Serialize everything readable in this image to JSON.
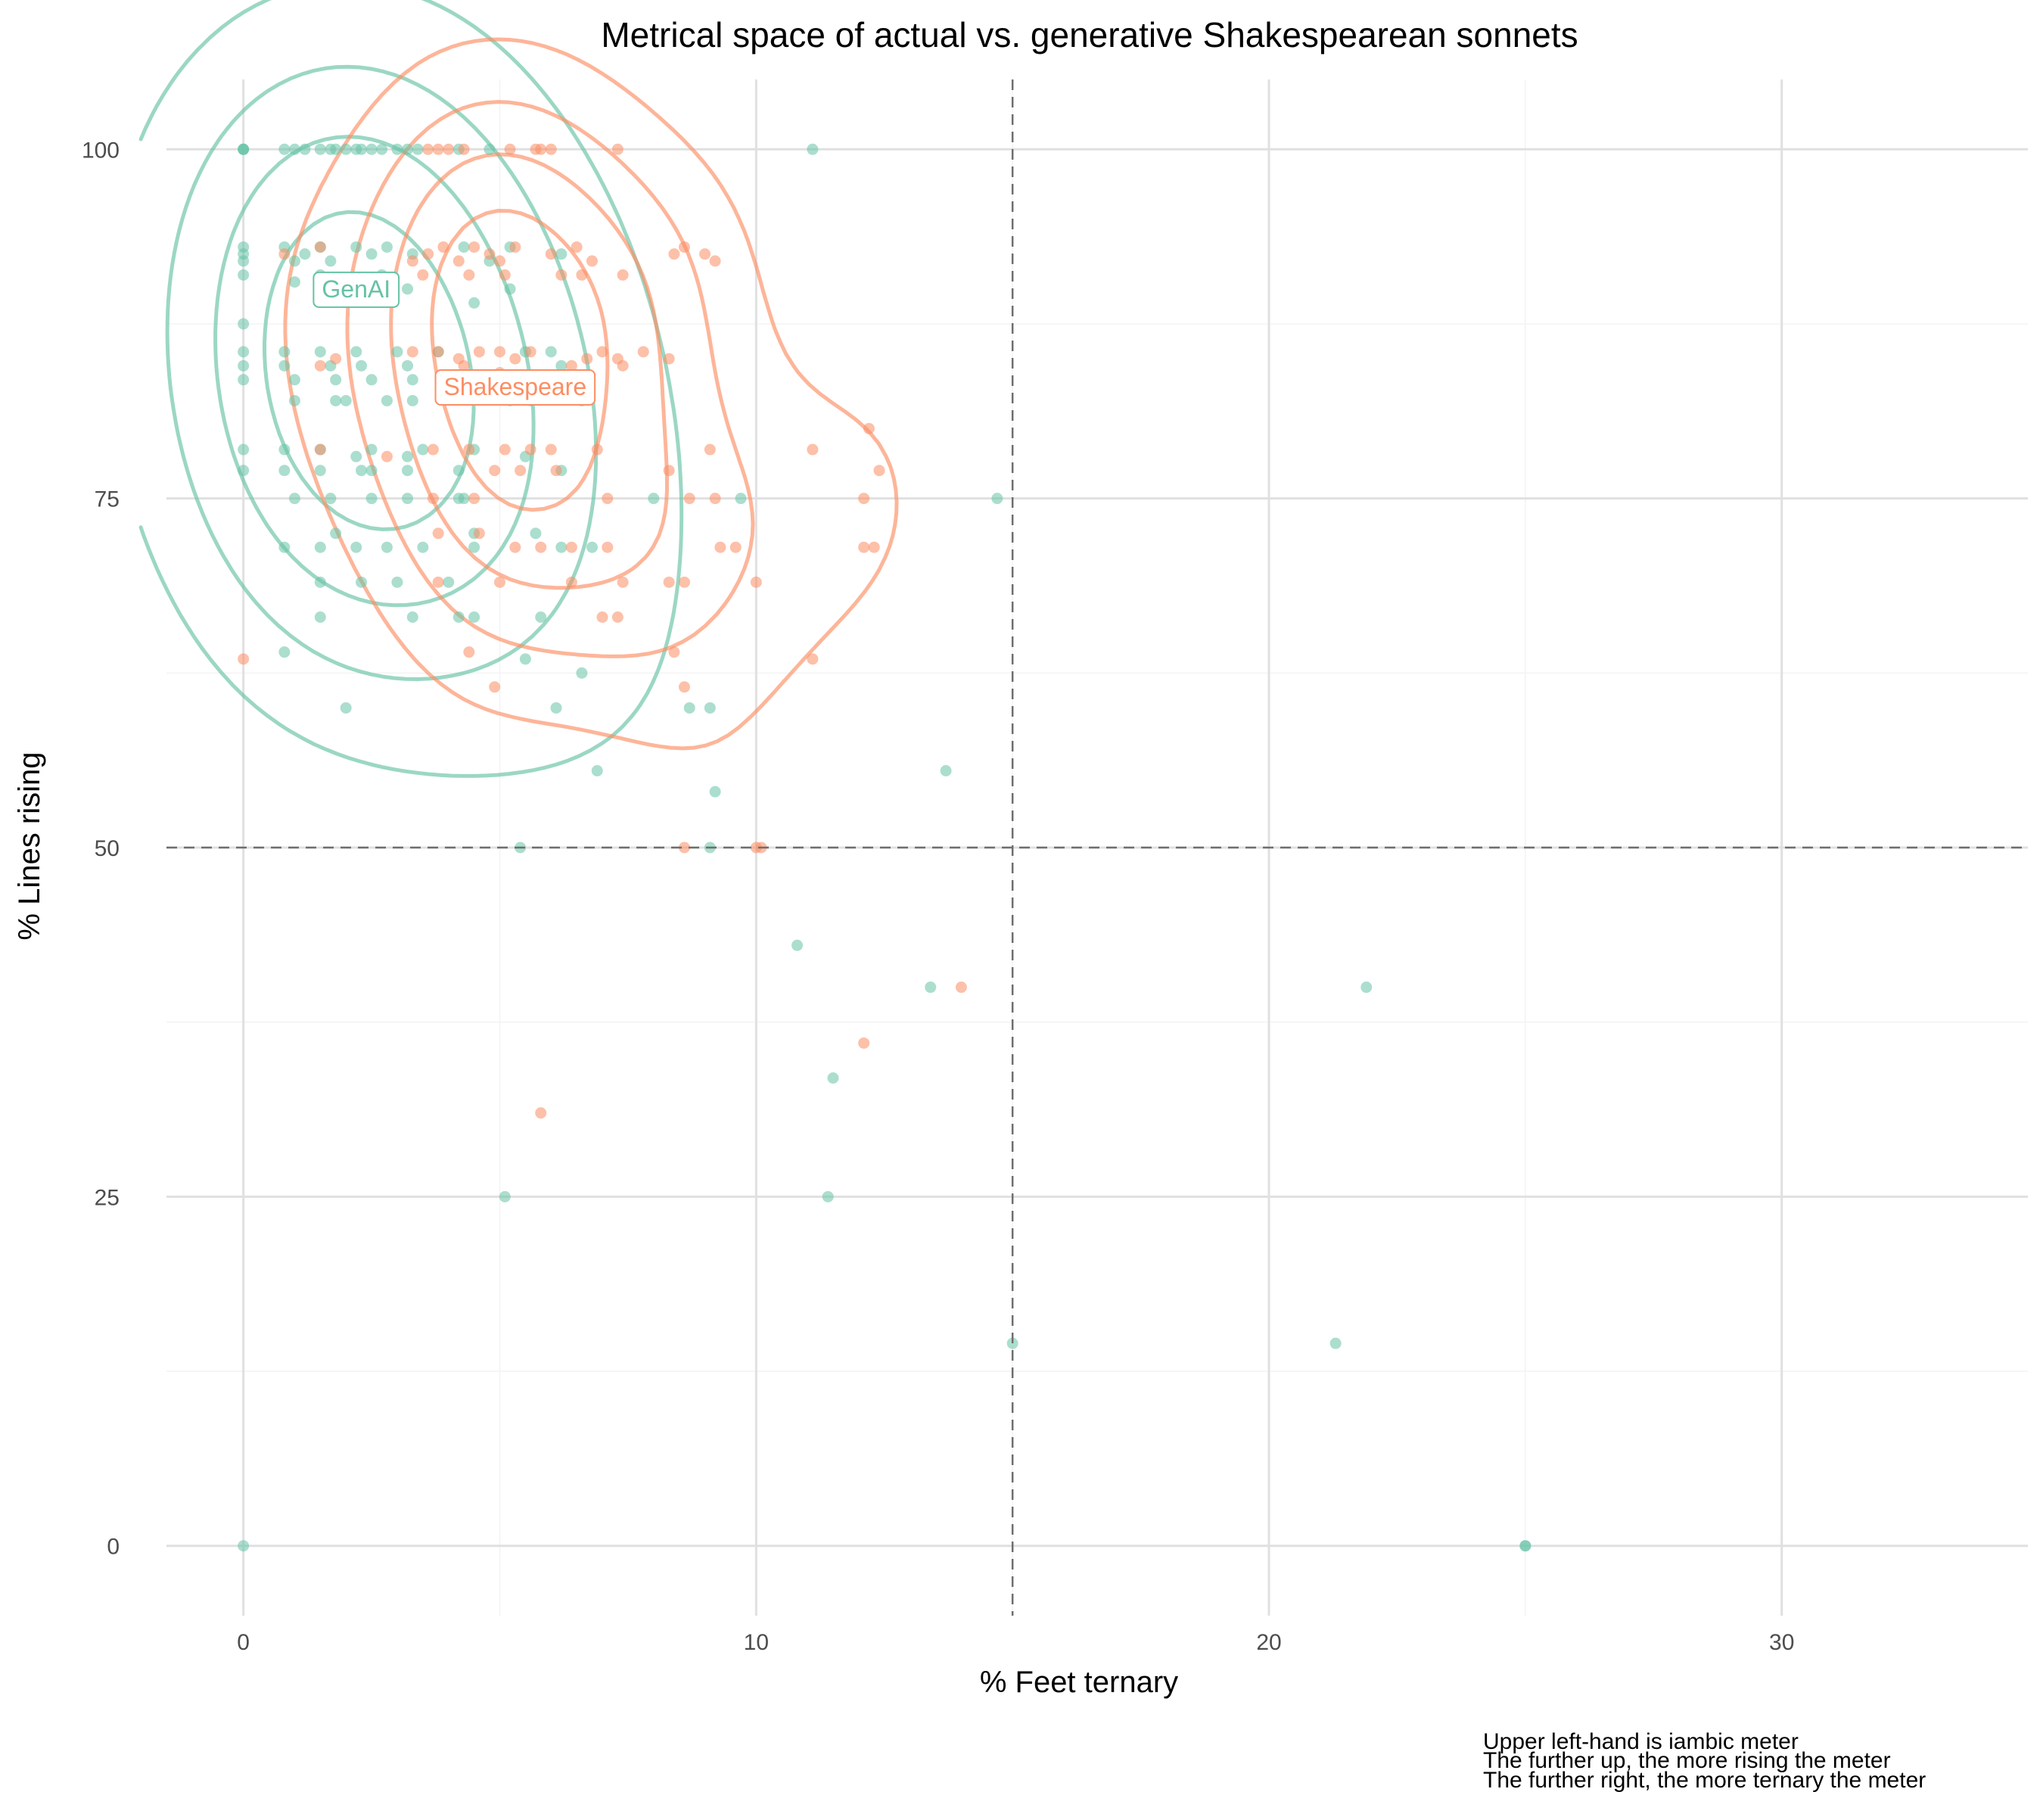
{
  "chart_data": {
    "type": "scatter",
    "title": "Metrical space of actual vs. generative Shakespearean sonnets",
    "xlabel": "% Feet ternary",
    "ylabel": "% Lines rising",
    "xlim": [
      -1.5,
      34.8
    ],
    "ylim": [
      -5,
      105
    ],
    "x_ticks": [
      0,
      10,
      20,
      30
    ],
    "y_ticks": [
      0,
      25,
      50,
      75,
      100
    ],
    "grid": true,
    "legend": "none",
    "reference_lines": {
      "x": 15,
      "y": 50
    },
    "caption": [
      "Upper left-hand is iambic meter",
      "The further up, the more rising the meter",
      "The further right, the more ternary the meter"
    ],
    "series": [
      {
        "name": "GenAI",
        "color": "#66c2a5",
        "label_position": [
          2.2,
          90
        ],
        "points": [
          [
            0,
            100
          ],
          [
            0,
            100
          ],
          [
            0,
            100
          ],
          [
            0.8,
            100
          ],
          [
            1,
            100
          ],
          [
            1.2,
            100
          ],
          [
            1.5,
            100
          ],
          [
            1.7,
            100
          ],
          [
            1.8,
            100
          ],
          [
            2,
            100
          ],
          [
            2.2,
            100
          ],
          [
            2.3,
            100
          ],
          [
            2.5,
            100
          ],
          [
            2.7,
            100
          ],
          [
            3,
            100
          ],
          [
            3.2,
            100
          ],
          [
            3.4,
            100
          ],
          [
            4.2,
            100
          ],
          [
            4.8,
            100
          ],
          [
            11.1,
            100
          ],
          [
            0,
            93
          ],
          [
            0,
            92.5
          ],
          [
            0,
            92
          ],
          [
            0,
            91
          ],
          [
            0.8,
            93
          ],
          [
            1,
            92
          ],
          [
            1.2,
            92.5
          ],
          [
            1.5,
            93
          ],
          [
            1.7,
            92
          ],
          [
            2.2,
            93
          ],
          [
            2.5,
            92.5
          ],
          [
            2.8,
            93
          ],
          [
            3.3,
            92.5
          ],
          [
            4.3,
            93
          ],
          [
            4.8,
            92
          ],
          [
            5.2,
            93
          ],
          [
            6.2,
            92.5
          ],
          [
            1,
            90.5
          ],
          [
            1.5,
            91
          ],
          [
            1.8,
            90
          ],
          [
            2.3,
            90.5
          ],
          [
            2.7,
            91
          ],
          [
            3.2,
            90
          ],
          [
            4.5,
            89
          ],
          [
            5.2,
            90
          ],
          [
            0,
            87.5
          ],
          [
            0,
            85.5
          ],
          [
            0,
            84.5
          ],
          [
            0,
            83.5
          ],
          [
            0.8,
            85.5
          ],
          [
            0.8,
            84.5
          ],
          [
            1,
            83.5
          ],
          [
            1.5,
            85.5
          ],
          [
            1.7,
            84.5
          ],
          [
            1.8,
            83.5
          ],
          [
            2.2,
            85.5
          ],
          [
            2.3,
            84.5
          ],
          [
            2.5,
            83.5
          ],
          [
            3,
            85.5
          ],
          [
            3.2,
            84.5
          ],
          [
            3.3,
            83.5
          ],
          [
            3.8,
            85.5
          ],
          [
            5.5,
            85.5
          ],
          [
            6,
            85.5
          ],
          [
            6.2,
            84.5
          ],
          [
            1,
            82
          ],
          [
            1.8,
            82
          ],
          [
            2,
            82
          ],
          [
            2.8,
            82
          ],
          [
            3.3,
            82
          ],
          [
            5.2,
            82
          ],
          [
            5.6,
            82
          ],
          [
            6.6,
            82
          ],
          [
            0,
            78.5
          ],
          [
            0.8,
            78.5
          ],
          [
            1.5,
            78.5
          ],
          [
            2.2,
            78
          ],
          [
            2.5,
            78.5
          ],
          [
            3.2,
            78
          ],
          [
            3.5,
            78.5
          ],
          [
            4.5,
            78.5
          ],
          [
            5.5,
            78
          ],
          [
            0,
            77
          ],
          [
            0.8,
            77
          ],
          [
            1.5,
            77
          ],
          [
            2.3,
            77
          ],
          [
            2.5,
            77
          ],
          [
            3.2,
            77
          ],
          [
            4.2,
            77
          ],
          [
            6.2,
            77
          ],
          [
            1,
            75
          ],
          [
            1.7,
            75
          ],
          [
            2.5,
            75
          ],
          [
            3.2,
            75
          ],
          [
            4.2,
            75
          ],
          [
            4.3,
            75
          ],
          [
            8,
            75
          ],
          [
            9.7,
            75
          ],
          [
            14.7,
            75
          ],
          [
            0.8,
            71.5
          ],
          [
            1.5,
            71.5
          ],
          [
            2.2,
            71.5
          ],
          [
            2.8,
            71.5
          ],
          [
            3.5,
            71.5
          ],
          [
            4.5,
            71.5
          ],
          [
            6.2,
            71.5
          ],
          [
            6.8,
            71.5
          ],
          [
            1.8,
            72.5
          ],
          [
            4.5,
            72.5
          ],
          [
            5.7,
            72.5
          ],
          [
            1.5,
            69
          ],
          [
            2.3,
            69
          ],
          [
            3,
            69
          ],
          [
            4,
            69
          ],
          [
            1.5,
            66.5
          ],
          [
            3.3,
            66.5
          ],
          [
            4.2,
            66.5
          ],
          [
            4.5,
            66.5
          ],
          [
            5.8,
            66.5
          ],
          [
            0.8,
            64
          ],
          [
            5.5,
            63.5
          ],
          [
            6.6,
            62.5
          ],
          [
            2,
            60
          ],
          [
            6.1,
            60
          ],
          [
            8.7,
            60
          ],
          [
            9.1,
            60
          ],
          [
            6.9,
            55.5
          ],
          [
            13.7,
            55.5
          ],
          [
            9.2,
            54
          ],
          [
            5.4,
            50
          ],
          [
            9.1,
            50
          ],
          [
            10.8,
            43
          ],
          [
            13.4,
            40
          ],
          [
            21.9,
            40
          ],
          [
            11.5,
            33.5
          ],
          [
            5.1,
            25
          ],
          [
            11.4,
            25
          ],
          [
            15,
            14.5
          ],
          [
            21.3,
            14.5
          ],
          [
            0,
            0
          ],
          [
            25,
            0
          ],
          [
            25,
            0
          ]
        ]
      },
      {
        "name": "Shakespeare",
        "color": "#fc8d62",
        "label_position": [
          5.3,
          83
        ],
        "points": [
          [
            3.6,
            100
          ],
          [
            3.8,
            100
          ],
          [
            4,
            100
          ],
          [
            4.3,
            100
          ],
          [
            5.2,
            100
          ],
          [
            5.7,
            100
          ],
          [
            5.8,
            100
          ],
          [
            6,
            100
          ],
          [
            7.3,
            100
          ],
          [
            0.8,
            92.5
          ],
          [
            1.5,
            93
          ],
          [
            3.3,
            92
          ],
          [
            3.6,
            92.5
          ],
          [
            3.9,
            93
          ],
          [
            4.2,
            92
          ],
          [
            4.5,
            93
          ],
          [
            4.8,
            92.5
          ],
          [
            5,
            92
          ],
          [
            5.3,
            93
          ],
          [
            6,
            92.5
          ],
          [
            6.5,
            93
          ],
          [
            6.8,
            92
          ],
          [
            8.4,
            92.5
          ],
          [
            8.6,
            93
          ],
          [
            9,
            92.5
          ],
          [
            9.2,
            92
          ],
          [
            3.5,
            91
          ],
          [
            4.4,
            91
          ],
          [
            5.1,
            91
          ],
          [
            6.2,
            91
          ],
          [
            6.6,
            91
          ],
          [
            7.4,
            91
          ],
          [
            1.8,
            85
          ],
          [
            3.3,
            85.5
          ],
          [
            3.8,
            85.5
          ],
          [
            4.2,
            85
          ],
          [
            4.6,
            85.5
          ],
          [
            5,
            85.5
          ],
          [
            5.3,
            85
          ],
          [
            5.6,
            85.5
          ],
          [
            6.7,
            85
          ],
          [
            7,
            85.5
          ],
          [
            7.3,
            85
          ],
          [
            7.8,
            85.5
          ],
          [
            8.3,
            85
          ],
          [
            1.5,
            84.5
          ],
          [
            4.3,
            84.5
          ],
          [
            5,
            84
          ],
          [
            6.4,
            84.5
          ],
          [
            7.4,
            84.5
          ],
          [
            1.5,
            78.5
          ],
          [
            2.8,
            78
          ],
          [
            3.7,
            78.5
          ],
          [
            4.4,
            78.5
          ],
          [
            5.1,
            78.5
          ],
          [
            5.6,
            78.5
          ],
          [
            6,
            78.5
          ],
          [
            6.9,
            78.5
          ],
          [
            9.1,
            78.5
          ],
          [
            11.1,
            78.5
          ],
          [
            12.2,
            80
          ],
          [
            4.9,
            77
          ],
          [
            5.4,
            77
          ],
          [
            6.1,
            77
          ],
          [
            8.3,
            77
          ],
          [
            12.4,
            77
          ],
          [
            3.7,
            75
          ],
          [
            4.5,
            75
          ],
          [
            7.1,
            75
          ],
          [
            8.7,
            75
          ],
          [
            9.2,
            75
          ],
          [
            12.1,
            75
          ],
          [
            3.8,
            72.5
          ],
          [
            4.6,
            72.5
          ],
          [
            5.3,
            71.5
          ],
          [
            5.8,
            71.5
          ],
          [
            6.4,
            71.5
          ],
          [
            7.1,
            71.5
          ],
          [
            9.3,
            71.5
          ],
          [
            9.6,
            71.5
          ],
          [
            12.1,
            71.5
          ],
          [
            12.3,
            71.5
          ],
          [
            3.8,
            69
          ],
          [
            5,
            69
          ],
          [
            6.4,
            69
          ],
          [
            7.4,
            69
          ],
          [
            8.3,
            69
          ],
          [
            8.6,
            69
          ],
          [
            10,
            69
          ],
          [
            7,
            66.5
          ],
          [
            7.3,
            66.5
          ],
          [
            4.4,
            64
          ],
          [
            8.4,
            64
          ],
          [
            11.1,
            63.5
          ],
          [
            0,
            63.5
          ],
          [
            4.9,
            61.5
          ],
          [
            8.6,
            61.5
          ],
          [
            8.6,
            50
          ],
          [
            10,
            50
          ],
          [
            10.1,
            50
          ],
          [
            14,
            40
          ],
          [
            12.1,
            36
          ],
          [
            5.8,
            31
          ]
        ]
      }
    ]
  }
}
